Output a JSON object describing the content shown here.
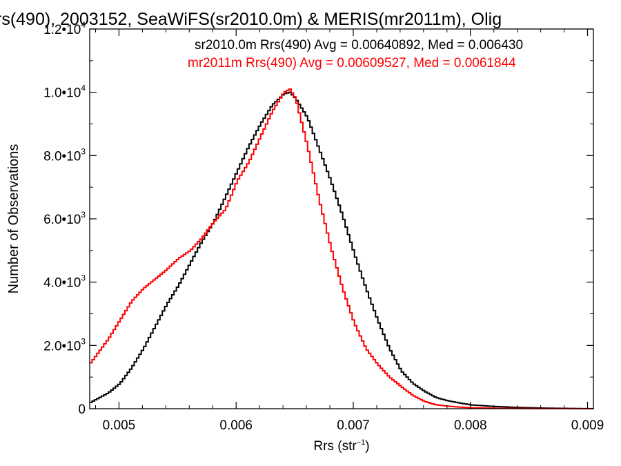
{
  "chart_data": {
    "type": "line",
    "title": "rs(490), 2003152, SeaWiFS(sr2010.0m) & MERIS(mr2011m), Olig",
    "xlabel": "Rrs (str",
    "xlabel_sup": "−1",
    "xlabel_close": ")",
    "ylabel": "Number of Observations",
    "xlim": [
      0.00475,
      0.00905
    ],
    "ylim": [
      0,
      12000
    ],
    "grid": false,
    "legend_placement": "top-right",
    "x_ticks": [
      {
        "value": 0.005,
        "label": "0.005"
      },
      {
        "value": 0.006,
        "label": "0.006"
      },
      {
        "value": 0.007,
        "label": "0.007"
      },
      {
        "value": 0.008,
        "label": "0.008"
      },
      {
        "value": 0.009,
        "label": "0.009"
      }
    ],
    "y_ticks": [
      {
        "value": 0,
        "mant": "0",
        "exp": ""
      },
      {
        "value": 2000,
        "mant": "2.0•10",
        "exp": "3"
      },
      {
        "value": 4000,
        "mant": "4.0•10",
        "exp": "3"
      },
      {
        "value": 6000,
        "mant": "6.0•10",
        "exp": "3"
      },
      {
        "value": 8000,
        "mant": "8.0•10",
        "exp": "3"
      },
      {
        "value": 10000,
        "mant": "1.0•10",
        "exp": "4"
      },
      {
        "value": 12000,
        "mant": "1.2•10",
        "exp": "4"
      }
    ],
    "series": [
      {
        "name": "sr2010.0m Rrs(490) Avg = 0.00640892, Med = 0.006430",
        "color": "#000000",
        "x": [
          0.00475,
          0.0049,
          0.005,
          0.0051,
          0.0052,
          0.0053,
          0.0054,
          0.0055,
          0.0056,
          0.0057,
          0.0058,
          0.0059,
          0.006,
          0.0061,
          0.0062,
          0.0063,
          0.0064,
          0.00645,
          0.0065,
          0.0066,
          0.0067,
          0.0068,
          0.0069,
          0.007,
          0.0071,
          0.0072,
          0.0073,
          0.0074,
          0.0075,
          0.0076,
          0.0077,
          0.0078,
          0.0079,
          0.008,
          0.0082,
          0.0084,
          0.0086,
          0.0088,
          0.00905
        ],
        "y": [
          200,
          500,
          800,
          1300,
          1900,
          2600,
          3300,
          3900,
          4600,
          5300,
          5900,
          6700,
          7500,
          8300,
          9000,
          9600,
          9950,
          10000,
          9800,
          9200,
          8200,
          7200,
          6100,
          4900,
          3800,
          2800,
          1900,
          1200,
          800,
          550,
          350,
          250,
          180,
          120,
          70,
          40,
          20,
          10,
          0
        ]
      },
      {
        "name": "mr2011m Rrs(490) Avg = 0.00609527, Med = 0.0061844",
        "color": "#ff0000",
        "x": [
          0.00475,
          0.0048,
          0.0049,
          0.005,
          0.0051,
          0.0052,
          0.0053,
          0.0054,
          0.0055,
          0.0056,
          0.0057,
          0.0058,
          0.0059,
          0.006,
          0.0061,
          0.0062,
          0.0063,
          0.0064,
          0.00645,
          0.0065,
          0.0066,
          0.0067,
          0.0068,
          0.0069,
          0.007,
          0.0071,
          0.0072,
          0.0073,
          0.0074,
          0.0075,
          0.0076,
          0.0077,
          0.0078,
          0.0079,
          0.008,
          0.0082,
          0.0084,
          0.0086,
          0.0088,
          0.00905
        ],
        "y": [
          1450,
          1700,
          2200,
          2800,
          3400,
          3800,
          4100,
          4400,
          4750,
          5000,
          5400,
          5900,
          6300,
          7200,
          7800,
          8600,
          9400,
          10000,
          10100,
          9800,
          8300,
          6600,
          5100,
          3800,
          2700,
          1900,
          1400,
          1000,
          700,
          420,
          230,
          120,
          80,
          50,
          30,
          15,
          8,
          4,
          2,
          0
        ]
      }
    ]
  }
}
